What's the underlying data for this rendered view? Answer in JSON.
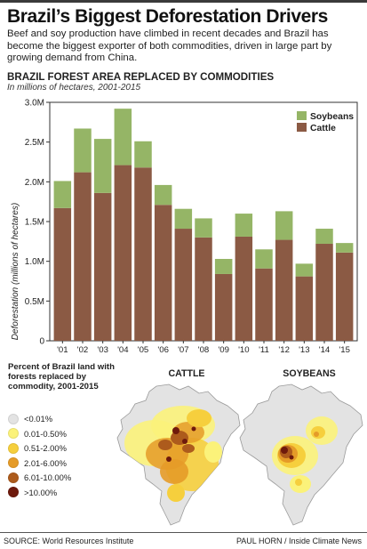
{
  "headline": "Brazil’s Biggest Deforestation Drivers",
  "intro": "Beef and soy production have climbed in recent decades and Brazil has become the biggest exporter of both commodities, driven in large part by growing demand from China.",
  "chart_data": {
    "type": "bar",
    "stacked": true,
    "title": "BRAZIL FOREST AREA REPLACED BY COMMODITIES",
    "subtitle": "In millions of hectares, 2001-2015",
    "ylabel": "Deforestation (millions of hectares)",
    "xlabel": "",
    "ylim": [
      0,
      3.0
    ],
    "yticks": [
      0,
      0.5,
      1.0,
      1.5,
      2.0,
      2.5,
      3.0
    ],
    "ytick_labels": [
      "0",
      "0.5M",
      "1.0M",
      "1.5M",
      "2.0M",
      "2.5M",
      "3.0M"
    ],
    "categories": [
      "'01",
      "'02",
      "'03",
      "'04",
      "'05",
      "'06",
      "'07",
      "'08",
      "'09",
      "'10",
      "'11",
      "'12",
      "'13",
      "'14",
      "'15"
    ],
    "series": [
      {
        "name": "Cattle",
        "color": "#8b5a44",
        "values": [
          1.67,
          2.12,
          1.86,
          2.21,
          2.18,
          1.71,
          1.41,
          1.3,
          0.84,
          1.31,
          0.91,
          1.27,
          0.81,
          1.22,
          1.11
        ]
      },
      {
        "name": "Soybeans",
        "color": "#95b566",
        "values": [
          0.34,
          0.55,
          0.68,
          0.71,
          0.33,
          0.25,
          0.25,
          0.24,
          0.19,
          0.29,
          0.24,
          0.36,
          0.16,
          0.19,
          0.12
        ]
      }
    ],
    "legend": [
      "Soybeans",
      "Cattle"
    ],
    "legend_position": "top-right",
    "grid": false
  },
  "maps": {
    "legend_title": "Percent of Brazil land with forests replaced by commodity, 2001-2015",
    "legend": [
      {
        "label": "<0.01%",
        "color": "#e3e3e3"
      },
      {
        "label": "0.01-0.50%",
        "color": "#fbf27a"
      },
      {
        "label": "0.51-2.00%",
        "color": "#f6cf3d"
      },
      {
        "label": "2.01-6.00%",
        "color": "#e59b28"
      },
      {
        "label": "6.01-10.00%",
        "color": "#ad5b1c"
      },
      {
        "label": ">10.00%",
        "color": "#6e1a0c"
      }
    ],
    "cattle_title": "CATTLE",
    "soybeans_title": "SOYBEANS"
  },
  "footer": {
    "source": "SOURCE: World Resources Institute",
    "credit": "PAUL HORN / Inside Climate News"
  }
}
